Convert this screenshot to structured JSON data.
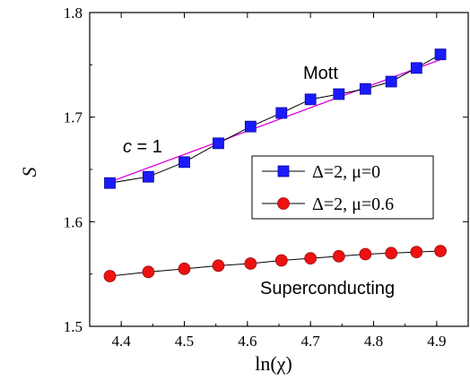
{
  "chart_data": {
    "type": "line",
    "xlabel": "ln(χ)",
    "ylabel": "S",
    "xlim": [
      4.35,
      4.95
    ],
    "ylim": [
      1.5,
      1.8
    ],
    "x_ticks": [
      4.4,
      4.5,
      4.6,
      4.7,
      4.8,
      4.9
    ],
    "y_ticks": [
      1.5,
      1.6,
      1.7,
      1.8
    ],
    "grid": false,
    "legend_position": "right-middle",
    "series": [
      {
        "name": "Δ=2, μ=0",
        "marker": "square",
        "color": "#1a1aff",
        "x": [
          4.382,
          4.443,
          4.5,
          4.554,
          4.605,
          4.654,
          4.7,
          4.745,
          4.787,
          4.828,
          4.868,
          4.906
        ],
        "y": [
          1.637,
          1.643,
          1.657,
          1.675,
          1.691,
          1.704,
          1.717,
          1.722,
          1.727,
          1.734,
          1.747,
          1.76
        ]
      },
      {
        "name": "Δ=2, μ=0.6",
        "marker": "circle",
        "color": "#ee1111",
        "x": [
          4.382,
          4.443,
          4.5,
          4.554,
          4.605,
          4.654,
          4.7,
          4.745,
          4.787,
          4.828,
          4.868,
          4.906
        ],
        "y": [
          1.548,
          1.552,
          1.555,
          1.558,
          1.56,
          1.563,
          1.565,
          1.567,
          1.569,
          1.57,
          1.571,
          1.572
        ]
      }
    ],
    "fit_line": {
      "color": "#dd00dd",
      "x": [
        4.382,
        4.906
      ],
      "y": [
        1.638,
        1.755
      ]
    },
    "annotations": {
      "mott": "Mott",
      "c_label_italic": "c",
      "c_label_rest": " = 1",
      "superconducting": "Superconducting"
    }
  }
}
